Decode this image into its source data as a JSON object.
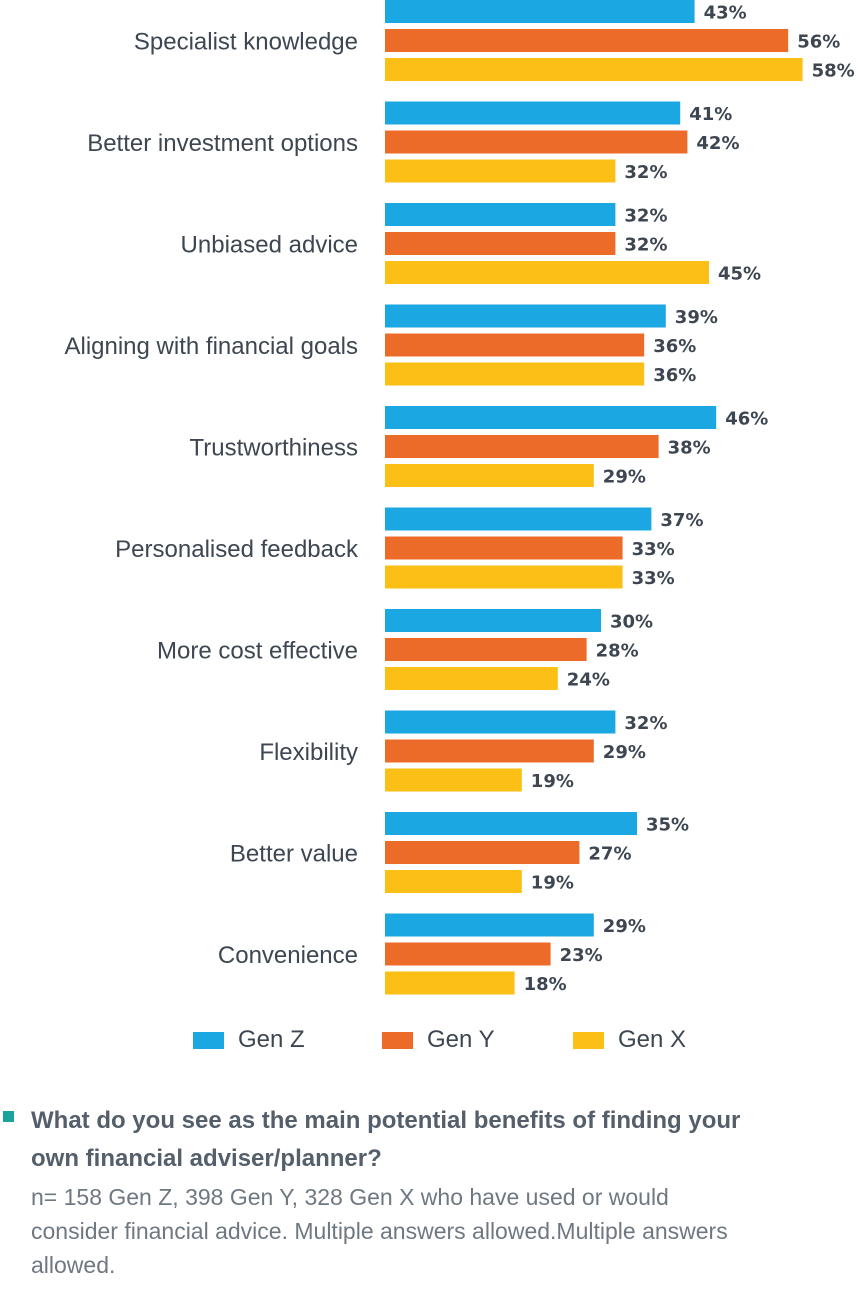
{
  "chart_data": {
    "type": "bar",
    "orientation": "horizontal",
    "categories": [
      "Specialist knowledge",
      "Better investment options",
      "Unbiased advice",
      "Aligning with financial goals",
      "Trustworthiness",
      "Personalised feedback",
      "More cost effective",
      "Flexibility",
      "Better value",
      "Convenience"
    ],
    "series": [
      {
        "name": "Gen Z",
        "color": "#1ba7e2",
        "values": [
          43,
          41,
          32,
          39,
          46,
          37,
          30,
          32,
          35,
          29
        ]
      },
      {
        "name": "Gen Y",
        "color": "#ec6b29",
        "values": [
          56,
          42,
          32,
          36,
          38,
          33,
          28,
          29,
          27,
          23
        ]
      },
      {
        "name": "Gen X",
        "color": "#fbbf15",
        "values": [
          58,
          32,
          45,
          36,
          29,
          33,
          24,
          19,
          19,
          18
        ]
      }
    ],
    "value_suffix": "%",
    "xlim": [
      0,
      100
    ],
    "grid": false,
    "legend_position": "bottom"
  },
  "legend": {
    "items": [
      {
        "label": "Gen Z",
        "color": "#1ba7e2"
      },
      {
        "label": "Gen Y",
        "color": "#ec6b29"
      },
      {
        "label": "Gen X",
        "color": "#fbbf15"
      }
    ]
  },
  "footer": {
    "question": "What do you see as the main potential benefits of finding your own financial adviser/planner?",
    "note": "n= 158 Gen Z, 398 Gen Y, 328 Gen X who have used or would consider financial advice. Multiple answers allowed.Multiple answers allowed.",
    "marker_color": "#1aa39a"
  }
}
